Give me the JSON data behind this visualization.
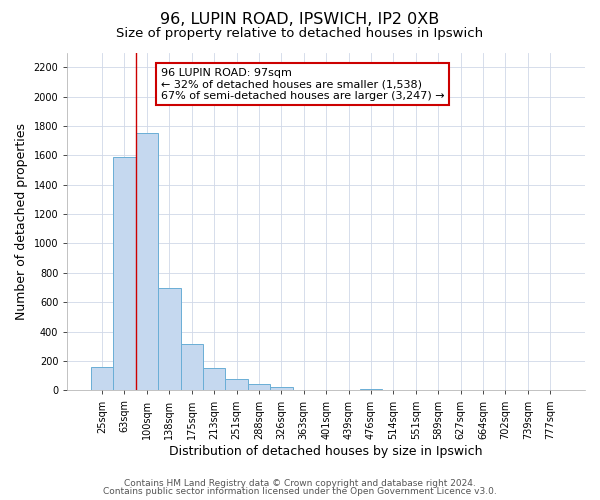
{
  "title1": "96, LUPIN ROAD, IPSWICH, IP2 0XB",
  "title2": "Size of property relative to detached houses in Ipswich",
  "xlabel": "Distribution of detached houses by size in Ipswich",
  "ylabel": "Number of detached properties",
  "bar_labels": [
    "25sqm",
    "63sqm",
    "100sqm",
    "138sqm",
    "175sqm",
    "213sqm",
    "251sqm",
    "288sqm",
    "326sqm",
    "363sqm",
    "401sqm",
    "439sqm",
    "476sqm",
    "514sqm",
    "551sqm",
    "589sqm",
    "627sqm",
    "664sqm",
    "702sqm",
    "739sqm",
    "777sqm"
  ],
  "bar_values": [
    160,
    1590,
    1755,
    700,
    315,
    155,
    80,
    45,
    20,
    0,
    0,
    0,
    10,
    0,
    0,
    0,
    0,
    0,
    0,
    0,
    0
  ],
  "bar_color": "#c5d8ef",
  "bar_edge_color": "#6aaed6",
  "property_line_x": 1.5,
  "property_line_color": "#cc0000",
  "annotation_title": "96 LUPIN ROAD: 97sqm",
  "annotation_line1": "← 32% of detached houses are smaller (1,538)",
  "annotation_line2": "67% of semi-detached houses are larger (3,247) →",
  "annotation_box_color": "#ffffff",
  "annotation_box_edge": "#cc0000",
  "ylim": [
    0,
    2300
  ],
  "yticks": [
    0,
    200,
    400,
    600,
    800,
    1000,
    1200,
    1400,
    1600,
    1800,
    2000,
    2200
  ],
  "grid_color": "#d0d8e8",
  "footer1": "Contains HM Land Registry data © Crown copyright and database right 2024.",
  "footer2": "Contains public sector information licensed under the Open Government Licence v3.0.",
  "bg_color": "#ffffff",
  "title_fontsize": 11.5,
  "subtitle_fontsize": 9.5,
  "axis_label_fontsize": 9,
  "tick_fontsize": 7,
  "footer_fontsize": 6.5,
  "ann_fontsize": 8
}
